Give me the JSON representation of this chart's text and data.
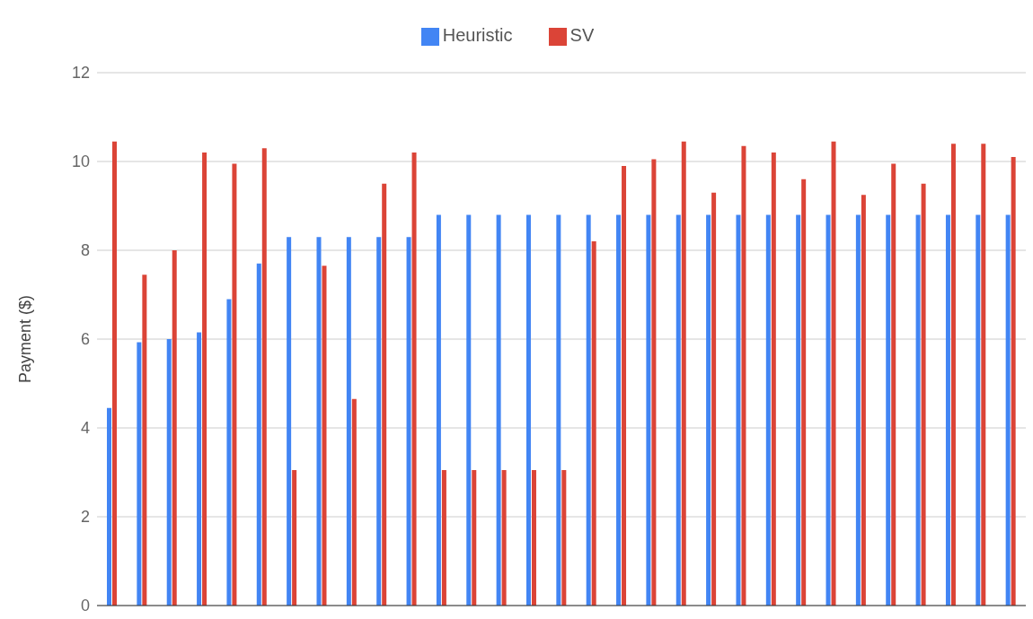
{
  "chart_data": {
    "type": "bar",
    "ylabel": "Payment ($)",
    "categories": [
      null,
      null,
      null,
      null,
      null,
      null,
      null,
      null,
      null,
      null,
      null,
      null,
      null,
      null,
      null,
      null,
      null,
      null,
      null,
      null,
      null,
      null,
      null,
      null,
      null,
      null,
      null,
      null,
      null,
      null,
      null
    ],
    "series": [
      {
        "name": "Heuristic",
        "color": "#4285f4",
        "values": [
          4.45,
          5.93,
          6.0,
          6.15,
          6.9,
          7.7,
          8.3,
          8.3,
          8.3,
          8.3,
          8.3,
          8.8,
          8.8,
          8.8,
          8.8,
          8.8,
          8.8,
          8.8,
          8.8,
          8.8,
          8.8,
          8.8,
          8.8,
          8.8,
          8.8,
          8.8,
          8.8,
          8.8,
          8.8,
          8.8,
          8.8
        ]
      },
      {
        "name": "SV",
        "color": "#db4437",
        "values": [
          10.45,
          7.45,
          8.0,
          10.2,
          9.95,
          10.3,
          3.05,
          7.65,
          4.65,
          9.5,
          10.2,
          3.05,
          3.05,
          3.05,
          3.05,
          3.05,
          8.2,
          9.9,
          10.05,
          10.45,
          9.3,
          10.35,
          10.2,
          9.6,
          10.45,
          9.25,
          9.95,
          9.5,
          10.4,
          10.4,
          10.1
        ]
      }
    ],
    "ylim": [
      0,
      12
    ],
    "yticks": [
      0,
      2,
      4,
      6,
      8,
      10,
      12
    ],
    "grid": "y",
    "legend": "top",
    "tick_labels": "y"
  }
}
